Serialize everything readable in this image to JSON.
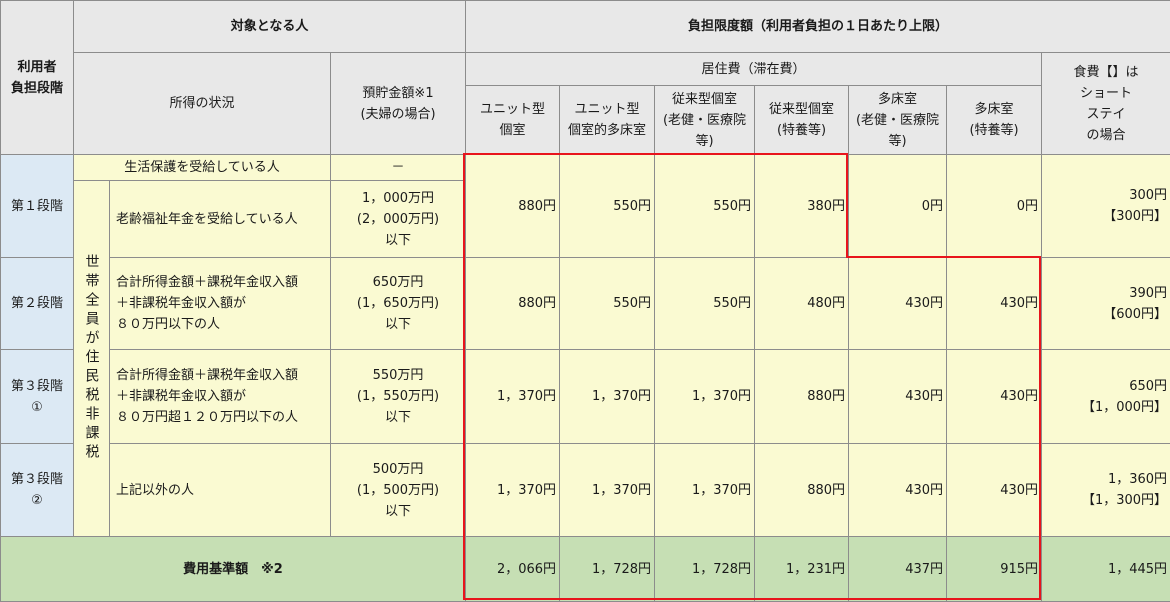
{
  "header": {
    "stage_title": "利用者\n負担段階",
    "target_people": "対象となる人",
    "burden_limit": "負担限度額（利用者負担の１日あたり上限）",
    "income_status": "所得の状況",
    "savings": "預貯金額※1\n(夫婦の場合)",
    "residence_cost": "居住費（滞在費）",
    "food_cost": "食費【】は\nショート\nステイ\nの場合",
    "rooms": [
      "ユニット型\n個室",
      "ユニット型\n個室的多床室",
      "従来型個室\n(老健・医療院\n等)",
      "従来型個室\n(特養等)",
      "多床室\n(老健・医療院\n等)",
      "多床室\n(特養等)"
    ]
  },
  "household_label": "世帯全員が住民税非課税",
  "rows": {
    "welfare": {
      "income": "生活保護を受給している人",
      "savings": "－"
    },
    "stage1": {
      "stage": "第１段階",
      "income": "老齢福祉年金を受給している人",
      "savings": "1，000万円\n(2，000万円)\n以下",
      "costs": [
        "880円",
        "550円",
        "550円",
        "380円",
        "0円",
        "0円"
      ],
      "food": "300円\n【300円】"
    },
    "stage2": {
      "stage": "第２段階",
      "income": "合計所得金額＋課税年金収入額\n＋非課税年金収入額が\n８０万円以下の人",
      "savings": "650万円\n(1，650万円)\n以下",
      "costs": [
        "880円",
        "550円",
        "550円",
        "480円",
        "430円",
        "430円"
      ],
      "food": "390円\n【600円】"
    },
    "stage3_1": {
      "stage": "第３段階\n①",
      "income": "合計所得金額＋課税年金収入額\n＋非課税年金収入額が\n８０万円超１２０万円以下の人",
      "savings": "550万円\n(1，550万円)\n以下",
      "costs": [
        "1，370円",
        "1，370円",
        "1，370円",
        "880円",
        "430円",
        "430円"
      ],
      "food": "650円\n【1，000円】"
    },
    "stage3_2": {
      "stage": "第３段階\n②",
      "income": "上記以外の人",
      "savings": "500万円\n(1，500万円)\n以下",
      "costs": [
        "1，370円",
        "1，370円",
        "1，370円",
        "880円",
        "430円",
        "430円"
      ],
      "food": "1，360円\n【1，300円】"
    }
  },
  "footer": {
    "label": "費用基準額　※2",
    "costs": [
      "2，066円",
      "1，728円",
      "1，728円",
      "1，231円",
      "437円",
      "915円"
    ],
    "food": "1，445円"
  },
  "colors": {
    "header_bg": "#e8e8e8",
    "stage_bg": "#dce9f4",
    "body_bg": "#fafad2",
    "footer_bg": "#c6dfb4",
    "highlight_border": "#e8141c"
  }
}
